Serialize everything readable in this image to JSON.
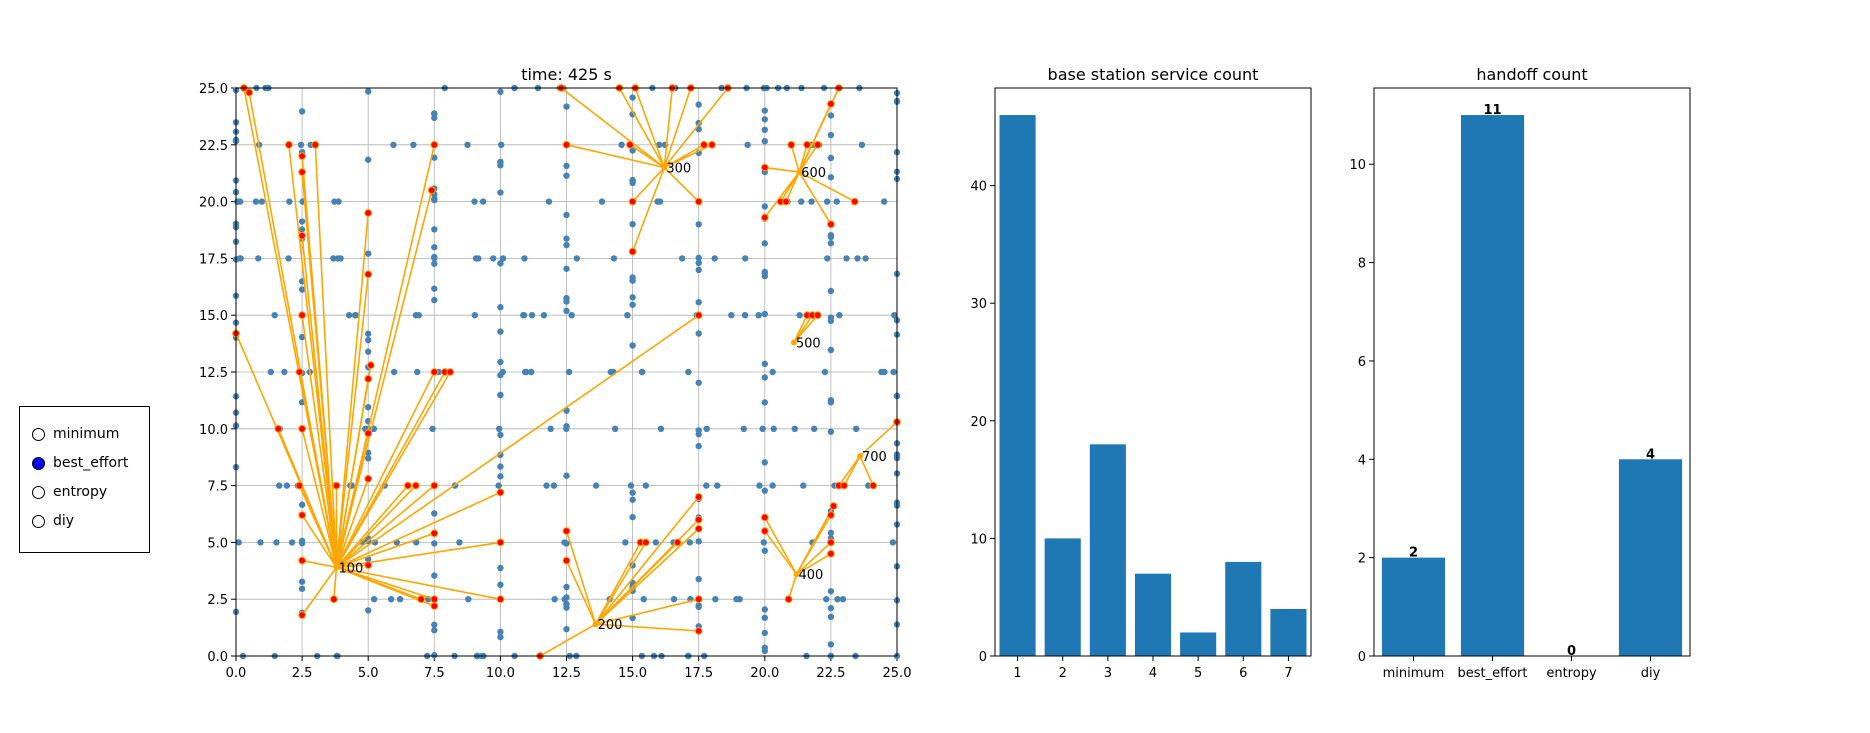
{
  "colors": {
    "bar": "#1f77b4",
    "node": "#4682b4",
    "served_node": "#ff0000",
    "link": "#ffa500",
    "grid": "#b0b0b0",
    "radio_active": "#0000ff"
  },
  "radio": {
    "options": [
      "minimum",
      "best_effort",
      "entropy",
      "diy"
    ],
    "selected": "best_effort"
  },
  "charts": [
    {
      "type": "scatter",
      "title": "time: 425 s",
      "xlim": [
        0,
        25
      ],
      "ylim": [
        0,
        25
      ],
      "xticks": [
        "0.0",
        "2.5",
        "5.0",
        "7.5",
        "10.0",
        "12.5",
        "15.0",
        "17.5",
        "20.0",
        "22.5",
        "25.0"
      ],
      "yticks": [
        "0.0",
        "2.5",
        "5.0",
        "7.5",
        "10.0",
        "12.5",
        "15.0",
        "17.5",
        "20.0",
        "22.5",
        "25.0"
      ],
      "grid": true,
      "stations": [
        {
          "label": "100",
          "x": 3.8,
          "y": 3.9
        },
        {
          "label": "200",
          "x": 13.6,
          "y": 1.4
        },
        {
          "label": "300",
          "x": 16.2,
          "y": 21.5
        },
        {
          "label": "400",
          "x": 21.2,
          "y": 3.6
        },
        {
          "label": "500",
          "x": 21.1,
          "y": 13.8
        },
        {
          "label": "600",
          "x": 21.3,
          "y": 21.3
        },
        {
          "label": "700",
          "x": 23.6,
          "y": 8.8
        }
      ],
      "served_users": [
        {
          "s": 0,
          "pts": [
            [
              0.3,
              25
            ],
            [
              0.5,
              24.8
            ],
            [
              2.5,
              22
            ],
            [
              2.0,
              22.5
            ],
            [
              2.5,
              21.3
            ],
            [
              2.5,
              18.5
            ],
            [
              2.5,
              15
            ],
            [
              2.4,
              12.5
            ],
            [
              2.5,
              10
            ],
            [
              2.4,
              7.5
            ],
            [
              2.5,
              6.2
            ],
            [
              2.5,
              4.2
            ],
            [
              1.6,
              10
            ],
            [
              0,
              14.2
            ],
            [
              3.0,
              22.5
            ],
            [
              5.0,
              19.5
            ],
            [
              5.0,
              16.8
            ],
            [
              5.0,
              12.2
            ],
            [
              5.1,
              12.8
            ],
            [
              5.0,
              9.8
            ],
            [
              5.0,
              7.8
            ],
            [
              5.0,
              4.0
            ],
            [
              3.8,
              7.5
            ],
            [
              6.5,
              7.5
            ],
            [
              6.8,
              7.5
            ],
            [
              7.5,
              7.5
            ],
            [
              7.4,
              20.5
            ],
            [
              7.5,
              22.5
            ],
            [
              7.5,
              12.5
            ],
            [
              7.9,
              12.5
            ],
            [
              8.1,
              12.5
            ],
            [
              7.5,
              5.4
            ],
            [
              7.5,
              2.5
            ],
            [
              7.5,
              2.2
            ],
            [
              7.0,
              2.5
            ],
            [
              10.0,
              7.2
            ],
            [
              10.0,
              5.0
            ],
            [
              10.0,
              2.5
            ],
            [
              17.5,
              15.0
            ],
            [
              2.5,
              1.8
            ],
            [
              3.7,
              2.5
            ]
          ]
        },
        {
          "s": 1,
          "pts": [
            [
              11.5,
              0
            ],
            [
              12.5,
              5.5
            ],
            [
              12.5,
              4.2
            ],
            [
              15.3,
              5.0
            ],
            [
              15.5,
              5.0
            ],
            [
              17.5,
              7.0
            ],
            [
              17.5,
              6.0
            ],
            [
              17.5,
              5.6
            ],
            [
              17.5,
              2.5
            ],
            [
              17.5,
              1.1
            ],
            [
              16.7,
              5.0
            ]
          ]
        },
        {
          "s": 2,
          "pts": [
            [
              12.5,
              22.5
            ],
            [
              12.3,
              25
            ],
            [
              14.5,
              25
            ],
            [
              15.1,
              25
            ],
            [
              16.5,
              25
            ],
            [
              17.2,
              25
            ],
            [
              14.9,
              22.5
            ],
            [
              15.0,
              20.0
            ],
            [
              15.0,
              17.8
            ],
            [
              17.5,
              20.0
            ],
            [
              18.0,
              22.5
            ],
            [
              18.6,
              25
            ],
            [
              17.7,
              22.5
            ]
          ]
        },
        {
          "s": 3,
          "pts": [
            [
              20.0,
              6.1
            ],
            [
              20.0,
              5.5
            ],
            [
              20.9,
              2.5
            ],
            [
              22.5,
              5.0
            ],
            [
              22.5,
              4.5
            ],
            [
              22.5,
              6.2
            ],
            [
              22.6,
              6.6
            ]
          ]
        },
        {
          "s": 4,
          "pts": [
            [
              21.6,
              15.0
            ],
            [
              21.8,
              15.0
            ],
            [
              22.0,
              15.0
            ]
          ]
        },
        {
          "s": 5,
          "pts": [
            [
              20.0,
              19.3
            ],
            [
              20.0,
              21.5
            ],
            [
              21.0,
              22.5
            ],
            [
              21.6,
              22.5
            ],
            [
              22.0,
              22.5
            ],
            [
              22.5,
              19.0
            ],
            [
              22.5,
              24.3
            ],
            [
              22.8,
              25
            ],
            [
              20.6,
              20.0
            ],
            [
              20.8,
              20.0
            ],
            [
              23.4,
              20.0
            ]
          ]
        },
        {
          "s": 6,
          "pts": [
            [
              22.8,
              7.5
            ],
            [
              23.0,
              7.5
            ],
            [
              24.1,
              7.5
            ],
            [
              25.0,
              10.3
            ]
          ]
        }
      ]
    },
    {
      "type": "bar",
      "title": "base station service count",
      "categories": [
        "1",
        "2",
        "3",
        "4",
        "5",
        "6",
        "7"
      ],
      "values": [
        46,
        10,
        18,
        7,
        2,
        8,
        4
      ],
      "yticks": [
        "0",
        "10",
        "20",
        "30",
        "40"
      ],
      "ylim": [
        0,
        48.3
      ]
    },
    {
      "type": "bar",
      "title": "handoff count",
      "categories": [
        "minimum",
        "best_effort",
        "entropy",
        "diy"
      ],
      "values": [
        2,
        11,
        0,
        4
      ],
      "data_labels": [
        "2",
        "11",
        "0",
        "4"
      ],
      "yticks": [
        "0",
        "2",
        "4",
        "6",
        "8",
        "10"
      ],
      "ylim": [
        0,
        11.55
      ]
    }
  ]
}
